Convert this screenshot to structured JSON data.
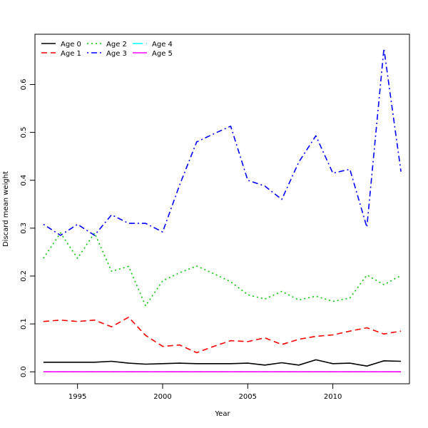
{
  "chart_data": {
    "type": "line",
    "title": "",
    "xlabel": "Year",
    "ylabel": "Discard mean weight",
    "xlim": [
      1992.5,
      2014.5
    ],
    "ylim": [
      -0.025,
      0.705
    ],
    "x_ticks": [
      1995,
      2000,
      2005,
      2010
    ],
    "y_ticks": [
      0.0,
      0.1,
      0.2,
      0.3,
      0.4,
      0.5,
      0.6
    ],
    "y_tick_labels": [
      "0.0",
      "0.1",
      "0.2",
      "0.3",
      "0.4",
      "0.5",
      "0.6"
    ],
    "grid": false,
    "legend_position": "top-left",
    "x": [
      1993,
      1994,
      1995,
      1996,
      1997,
      1998,
      1999,
      2000,
      2001,
      2002,
      2003,
      2004,
      2005,
      2006,
      2007,
      2008,
      2009,
      2010,
      2011,
      2012,
      2013,
      2014
    ],
    "series": [
      {
        "name": "Age 0",
        "color": "#000000",
        "dash": "solid",
        "values": [
          0.02,
          0.02,
          0.02,
          0.02,
          0.022,
          0.018,
          0.016,
          0.017,
          0.018,
          0.017,
          0.017,
          0.017,
          0.018,
          0.014,
          0.019,
          0.014,
          0.025,
          0.017,
          0.018,
          0.012,
          0.023,
          0.022
        ]
      },
      {
        "name": "Age 1",
        "color": "#ff0000",
        "dash": "dashed",
        "values": [
          0.105,
          0.108,
          0.105,
          0.108,
          0.094,
          0.114,
          0.076,
          0.053,
          0.056,
          0.04,
          0.053,
          0.065,
          0.063,
          0.071,
          0.057,
          0.068,
          0.074,
          0.077,
          0.085,
          0.092,
          0.079,
          0.085
        ]
      },
      {
        "name": "Age 2",
        "color": "#00cd00",
        "dash": "dotted",
        "values": [
          0.237,
          0.29,
          0.237,
          0.29,
          0.21,
          0.22,
          0.138,
          0.19,
          0.207,
          0.221,
          0.205,
          0.188,
          0.161,
          0.152,
          0.168,
          0.15,
          0.158,
          0.147,
          0.154,
          0.202,
          0.182,
          0.201
        ]
      },
      {
        "name": "Age 3",
        "color": "#0000ff",
        "dash": "dotdash",
        "values": [
          0.308,
          0.285,
          0.308,
          0.285,
          0.328,
          0.31,
          0.31,
          0.292,
          0.39,
          0.48,
          0.497,
          0.513,
          0.4,
          0.388,
          0.36,
          0.438,
          0.493,
          0.415,
          0.423,
          0.302,
          0.675,
          0.418
        ]
      },
      {
        "name": "Age 4",
        "color": "#00ffff",
        "dash": "longdash",
        "values": [
          0,
          0,
          0,
          0,
          0,
          0,
          0,
          0,
          0,
          0,
          0,
          0,
          0,
          0,
          0,
          0,
          0,
          0,
          0,
          0,
          0,
          0
        ]
      },
      {
        "name": "Age 5",
        "color": "#ff00ff",
        "dash": "solid",
        "values": [
          0,
          0,
          0,
          0,
          0,
          0,
          0,
          0,
          0,
          0,
          0,
          0,
          0,
          0,
          0,
          0,
          0,
          0,
          0,
          0,
          0,
          0
        ]
      }
    ]
  }
}
